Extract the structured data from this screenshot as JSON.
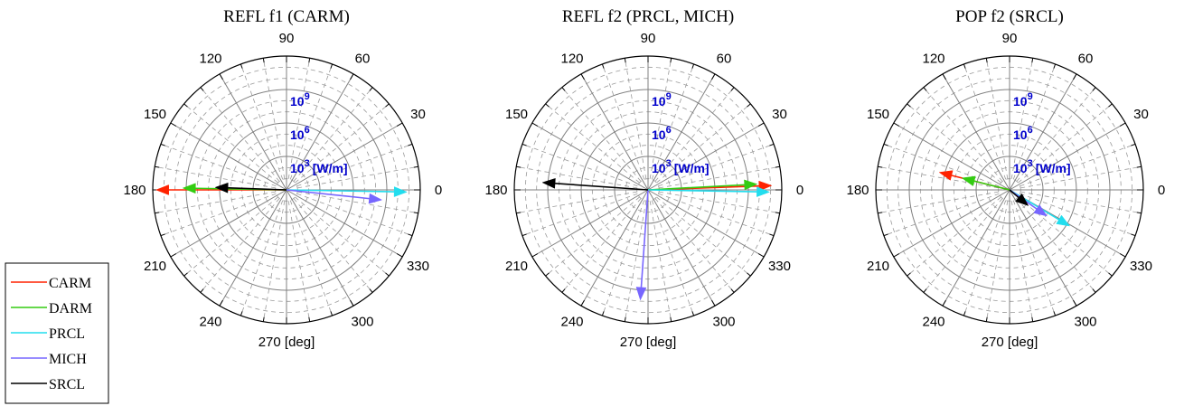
{
  "chart_data": [
    {
      "type": "polar",
      "title": "REFL f1 (CARM)",
      "angle_ticks": [
        {
          "angle": 0,
          "label": "0"
        },
        {
          "angle": 30,
          "label": "30"
        },
        {
          "angle": 60,
          "label": "60"
        },
        {
          "angle": 90,
          "label": "90"
        },
        {
          "angle": 120,
          "label": "120"
        },
        {
          "angle": 150,
          "label": "150"
        },
        {
          "angle": 180,
          "label": "180"
        },
        {
          "angle": 210,
          "label": "210"
        },
        {
          "angle": 240,
          "label": "240"
        },
        {
          "angle": 270,
          "label": "270 [deg]"
        },
        {
          "angle": 300,
          "label": "300"
        },
        {
          "angle": 330,
          "label": "330"
        }
      ],
      "radial_scale": "log",
      "radial_range_decades": [
        0,
        12
      ],
      "radial_labels": [
        {
          "decade": 3,
          "base": "10",
          "exp": "3",
          "unit": "[W/m]"
        },
        {
          "decade": 6,
          "base": "10",
          "exp": "6",
          "unit": ""
        },
        {
          "decade": 9,
          "base": "10",
          "exp": "9",
          "unit": ""
        }
      ],
      "series": [
        {
          "name": "CARM",
          "angle": 180,
          "log_magnitude": 11.7
        },
        {
          "name": "DARM",
          "angle": 179,
          "log_magnitude": 9.3
        },
        {
          "name": "SRCL",
          "angle": 178,
          "log_magnitude": 6.4
        },
        {
          "name": "PRCL",
          "angle": 359,
          "log_magnitude": 10.8
        },
        {
          "name": "MICH",
          "angle": 354,
          "log_magnitude": 8.6
        }
      ]
    },
    {
      "type": "polar",
      "title": "REFL f2 (PRCL, MICH)",
      "angle_ticks": [
        {
          "angle": 0,
          "label": "0"
        },
        {
          "angle": 30,
          "label": "30"
        },
        {
          "angle": 60,
          "label": "60"
        },
        {
          "angle": 90,
          "label": "90"
        },
        {
          "angle": 120,
          "label": "120"
        },
        {
          "angle": 150,
          "label": "150"
        },
        {
          "angle": 180,
          "label": "180"
        },
        {
          "angle": 210,
          "label": "210"
        },
        {
          "angle": 240,
          "label": "240"
        },
        {
          "angle": 270,
          "label": "270 [deg]"
        },
        {
          "angle": 300,
          "label": "300"
        },
        {
          "angle": 330,
          "label": "330"
        }
      ],
      "radial_scale": "log",
      "radial_range_decades": [
        0,
        12
      ],
      "radial_labels": [
        {
          "decade": 3,
          "base": "10",
          "exp": "3",
          "unit": "[W/m]"
        },
        {
          "decade": 6,
          "base": "10",
          "exp": "6",
          "unit": ""
        },
        {
          "decade": 9,
          "base": "10",
          "exp": "9",
          "unit": ""
        }
      ],
      "series": [
        {
          "name": "CARM",
          "angle": 2,
          "log_magnitude": 11.1
        },
        {
          "name": "DARM",
          "angle": 3,
          "log_magnitude": 9.8
        },
        {
          "name": "PRCL",
          "angle": 359,
          "log_magnitude": 10.9
        },
        {
          "name": "MICH",
          "angle": 266,
          "log_magnitude": 9.9
        },
        {
          "name": "SRCL",
          "angle": 176,
          "log_magnitude": 9.5
        }
      ]
    },
    {
      "type": "polar",
      "title": "POP f2 (SRCL)",
      "angle_ticks": [
        {
          "angle": 0,
          "label": "0"
        },
        {
          "angle": 30,
          "label": "30"
        },
        {
          "angle": 60,
          "label": "60"
        },
        {
          "angle": 90,
          "label": "90"
        },
        {
          "angle": 120,
          "label": "120"
        },
        {
          "angle": 150,
          "label": "150"
        },
        {
          "angle": 180,
          "label": "180"
        },
        {
          "angle": 210,
          "label": "210"
        },
        {
          "angle": 240,
          "label": "240"
        },
        {
          "angle": 270,
          "label": "270 [deg]"
        },
        {
          "angle": 300,
          "label": "300"
        },
        {
          "angle": 330,
          "label": "330"
        }
      ],
      "radial_scale": "log",
      "radial_range_decades": [
        0,
        12
      ],
      "radial_labels": [
        {
          "decade": 3,
          "base": "10",
          "exp": "3",
          "unit": "[W/m]"
        },
        {
          "decade": 6,
          "base": "10",
          "exp": "6",
          "unit": ""
        },
        {
          "decade": 9,
          "base": "10",
          "exp": "9",
          "unit": ""
        }
      ],
      "series": [
        {
          "name": "CARM",
          "angle": 166,
          "log_magnitude": 6.5
        },
        {
          "name": "DARM",
          "angle": 166,
          "log_magnitude": 4.4
        },
        {
          "name": "PRCL",
          "angle": 329,
          "log_magnitude": 6.3
        },
        {
          "name": "MICH",
          "angle": 325,
          "log_magnitude": 4.1
        },
        {
          "name": "SRCL",
          "angle": 320,
          "log_magnitude": 2.2
        }
      ]
    }
  ],
  "legend": {
    "entries": [
      {
        "name": "CARM",
        "color": "#ff2200"
      },
      {
        "name": "DARM",
        "color": "#33cc11"
      },
      {
        "name": "PRCL",
        "color": "#22ddee"
      },
      {
        "name": "MICH",
        "color": "#7766ff"
      },
      {
        "name": "SRCL",
        "color": "#000000"
      }
    ]
  },
  "colors": {
    "CARM": "#ff2200",
    "DARM": "#33cc11",
    "PRCL": "#22ddee",
    "MICH": "#7766ff",
    "SRCL": "#000000",
    "radial_label": "#0000cc",
    "grid": "#888888"
  }
}
